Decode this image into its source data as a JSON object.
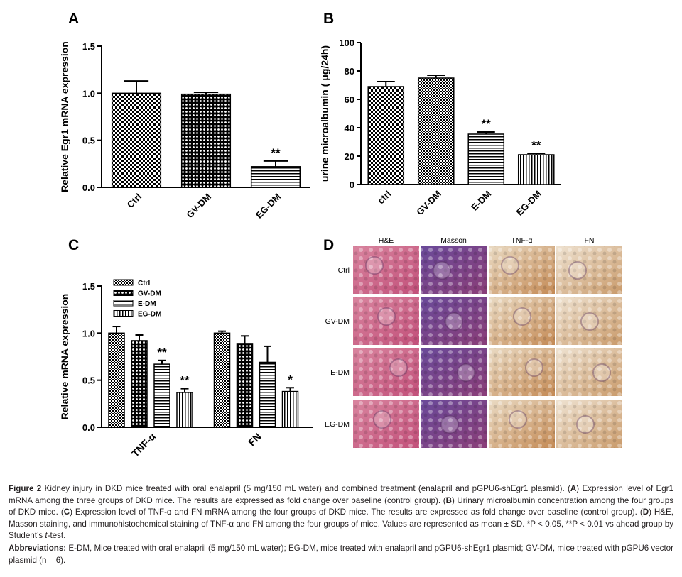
{
  "panel_labels": [
    "A",
    "B",
    "C",
    "D"
  ],
  "chart_data": [
    {
      "type": "bar",
      "ylabel": "Relative Egr1 mRNA expression",
      "categories": [
        "Ctrl",
        "GV-DM",
        "EG-DM"
      ],
      "values": [
        1.0,
        0.99,
        0.22
      ],
      "errors": [
        0.13,
        0.02,
        0.06
      ],
      "significance": [
        null,
        null,
        "**"
      ],
      "patterns": [
        "checker",
        "dots",
        "hlines"
      ],
      "color": "#000000",
      "ylim": [
        0,
        1.5
      ],
      "yticks": [
        {
          "value": 0,
          "label": "0.0"
        },
        0.5,
        {
          "value": 1,
          "label": "1.0"
        },
        1.5
      ],
      "grid": false
    },
    {
      "type": "bar",
      "ylabel": "urine microalbumin ( μg/24h)",
      "categories": [
        "ctrl",
        "GV-DM",
        "E-DM",
        "EG-DM"
      ],
      "values": [
        69,
        75,
        35.5,
        21
      ],
      "errors": [
        3.5,
        2,
        1.5,
        1
      ],
      "significance": [
        null,
        null,
        "**",
        "**"
      ],
      "patterns": [
        "checker",
        "checker-fine",
        "hlines",
        "vlines"
      ],
      "color": "#000000",
      "ylim": [
        0,
        100
      ],
      "yticks": [
        0,
        20,
        40,
        60,
        80,
        100
      ],
      "grid": false
    },
    {
      "type": "grouped_bar",
      "ylabel": "Relative mRNA expression",
      "categories": [
        "TNF-α",
        "FN"
      ],
      "legend": "top-left",
      "color": "#000000",
      "series": [
        {
          "name": "Ctrl",
          "pattern": "checker-fine",
          "values": [
            1.0,
            1.0
          ],
          "errors": [
            0.07,
            0.02
          ],
          "significance": [
            null,
            null
          ]
        },
        {
          "name": "GV-DM",
          "pattern": "dots",
          "values": [
            0.92,
            0.89
          ],
          "errors": [
            0.06,
            0.08
          ],
          "significance": [
            null,
            null
          ]
        },
        {
          "name": "E-DM",
          "pattern": "hlines",
          "values": [
            0.67,
            0.69
          ],
          "errors": [
            0.04,
            0.17
          ],
          "significance": [
            "**",
            null
          ]
        },
        {
          "name": "EG-DM",
          "pattern": "vlines",
          "values": [
            0.37,
            0.38
          ],
          "errors": [
            0.04,
            0.04
          ],
          "significance": [
            "**",
            "*"
          ]
        }
      ],
      "ylim": [
        0,
        1.5
      ],
      "yticks": [
        {
          "value": 0,
          "label": "0.0"
        },
        0.5,
        {
          "value": 1,
          "label": "1.0"
        },
        1.5
      ],
      "grid": false
    }
  ],
  "panel_d": {
    "columns": [
      "H&E",
      "Masson",
      "TNF-α",
      "FN"
    ],
    "rows": [
      "Ctrl",
      "GV-DM",
      "E-DM",
      "EG-DM"
    ]
  },
  "caption": {
    "runs": [
      {
        "text": "Figure 2",
        "bold": true
      },
      {
        "text": " Kidney injury in DKD mice treated with oral enalapril (5 mg/150 mL water) and combined treatment (enalapril and pGPU6-shEgr1 plasmid). (",
        "bold": false
      },
      {
        "text": "A",
        "bold": true
      },
      {
        "text": ") Expression level of Egr1 mRNA among the three groups of DKD mice. The results are expressed as fold change over baseline (control group). (",
        "bold": false
      },
      {
        "text": "B",
        "bold": true
      },
      {
        "text": ") Urinary microalbumin concentration among the four groups of DKD mice. (",
        "bold": false
      },
      {
        "text": "C",
        "bold": true
      },
      {
        "text": ") Expression level of TNF-α and FN mRNA among the four groups of DKD mice. The results are expressed as fold change over baseline (control group). (",
        "bold": false
      },
      {
        "text": "D",
        "bold": true
      },
      {
        "text": ") H&E, Masson staining, and immunohistochemical staining of TNF-α and FN among the four groups of mice. Values are represented as mean ± SD. *P < 0.05, **P < 0.01 vs ahead group by Student’s ",
        "bold": false
      },
      {
        "text": "t",
        "italic": true
      },
      {
        "text": "-test.",
        "bold": false
      }
    ]
  },
  "abbreviations": {
    "runs": [
      {
        "text": "Abbreviations:",
        "bold": true
      },
      {
        "text": " E-DM, Mice treated with oral enalapril (5 mg/150 mL water); EG-DM, mice treated with enalapril and pGPU6-shEgr1 plasmid; GV-DM, mice treated with pGPU6 vector plasmid (n = 6).",
        "bold": false
      }
    ]
  }
}
